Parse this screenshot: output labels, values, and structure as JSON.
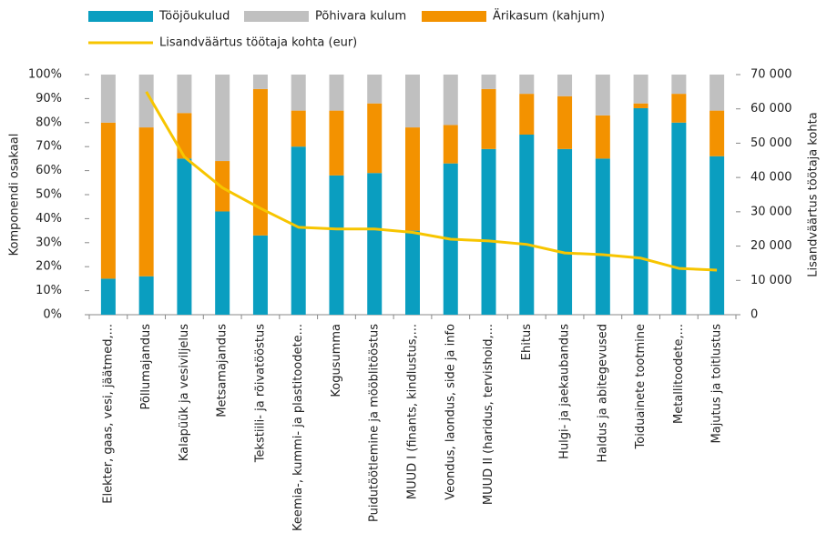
{
  "chart_data": {
    "type": "bar",
    "stacked": true,
    "y_label": "Komponendi osakaal",
    "y2_label": "Lisandväärtus töötaja kohta",
    "categories": [
      "Elekter, gaas, vesi, jäätmed,...",
      "Põllumajandus",
      "Kalapüük ja vesiviljelus",
      "Metsamajandus",
      "Tekstiili- ja rõivatööstus",
      "Keemia-, kummi- ja plastitoodete...",
      "Kogusumma",
      "Puidutöötlemine ja mööblitööstus",
      "MUUD I (finants, kindlustus,...",
      "Veondus, laondus, side ja info",
      "MUUD II (haridus, tervishoid,...",
      "Ehitus",
      "Hulgi- ja jaekaubandus",
      "Haldus ja abitegevused",
      "Toiduainete tootmine",
      "Metallitoodete,...",
      "Majutus ja toitlustus"
    ],
    "series": [
      {
        "name": "Tööjõukulud",
        "color": "#0a9ec0",
        "values": [
          15,
          16,
          65,
          43,
          33,
          70,
          58,
          59,
          35,
          63,
          69,
          75,
          69,
          65,
          86,
          80,
          66
        ]
      },
      {
        "name": "Põhivara kulum",
        "color": "#c0c0c0",
        "values": [
          20,
          22,
          16,
          36,
          6,
          15,
          15,
          12,
          22,
          21,
          6,
          8,
          9,
          17,
          12,
          8,
          15
        ]
      },
      {
        "name": "Ärikasum (kahjum)",
        "color": "#f39200",
        "values": [
          65,
          62,
          19,
          21,
          61,
          15,
          27,
          29,
          43,
          16,
          25,
          17,
          22,
          18,
          2,
          12,
          19
        ]
      },
      {
        "name": "Lisandväärtus töötaja kohta (eur)",
        "color": "#f7c500",
        "type": "line",
        "axis": "y2",
        "values": [
          null,
          65000,
          46000,
          37000,
          31000,
          25500,
          25000,
          25000,
          24000,
          22000,
          21500,
          20500,
          18000,
          17500,
          16500,
          13500,
          13000
        ]
      }
    ],
    "ylim": [
      0,
      100
    ],
    "yticks": [
      {
        "value": 0,
        "label": "0%"
      },
      {
        "value": 10,
        "label": "10%"
      },
      {
        "value": 20,
        "label": "20%"
      },
      {
        "value": 30,
        "label": "30%"
      },
      {
        "value": 40,
        "label": "40%"
      },
      {
        "value": 50,
        "label": "50%"
      },
      {
        "value": 60,
        "label": "60%"
      },
      {
        "value": 70,
        "label": "70%"
      },
      {
        "value": 80,
        "label": "80%"
      },
      {
        "value": 90,
        "label": "90%"
      },
      {
        "value": 100,
        "label": "100%"
      }
    ],
    "y2lim": [
      0,
      70000
    ],
    "y2ticks": [
      0,
      {
        "value": 10000,
        "label": "10 000"
      },
      {
        "value": 20000,
        "label": "20 000"
      },
      {
        "value": 30000,
        "label": "30 000"
      },
      {
        "value": 40000,
        "label": "40 000"
      },
      {
        "value": 50000,
        "label": "50 000"
      },
      {
        "value": 60000,
        "label": "60 000"
      },
      {
        "value": 70000,
        "label": "70 000"
      }
    ]
  }
}
